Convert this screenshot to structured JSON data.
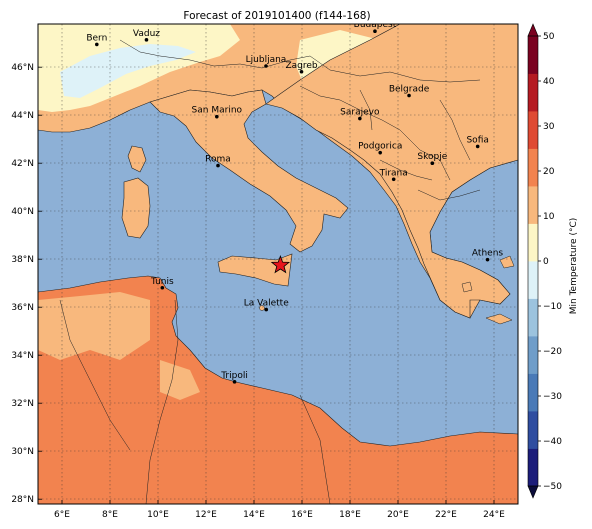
{
  "title": "Forecast of 2019101400 (f144-168)",
  "colorbar": {
    "label": "Min Temperature (°C)",
    "ticks": [
      "−50",
      "−40",
      "−30",
      "−20",
      "−10",
      "0",
      "10",
      "20",
      "30",
      "40",
      "50"
    ],
    "colors": [
      "#1c1d7a",
      "#2f4da0",
      "#4a7ab7",
      "#6f9dc9",
      "#9cc3de",
      "#def2f8",
      "#fdf6c6",
      "#f8b87d",
      "#f2834f",
      "#df4a33",
      "#b51b22",
      "#7a0220"
    ]
  },
  "map": {
    "region": "Central Mediterranean",
    "lon_range": [
      5,
      25
    ],
    "lat_range": [
      27.8,
      47.8
    ],
    "lon_ticks": [
      "6°E",
      "8°E",
      "10°E",
      "12°E",
      "14°E",
      "16°E",
      "18°E",
      "20°E",
      "22°E",
      "24°E"
    ],
    "lat_ticks": [
      "46°N",
      "44°N",
      "42°N",
      "40°N",
      "38°N",
      "36°N",
      "34°N",
      "32°N",
      "30°N",
      "28°N"
    ],
    "colors": {
      "sea": "#8db0d6",
      "land_warm": "#f8b87d",
      "land_hot": "#f2834f",
      "land_mild": "#fdf6c6",
      "alps_cold": "#def2f8"
    },
    "cities": [
      {
        "name": "Bern",
        "lon": 7.45,
        "lat": 46.95
      },
      {
        "name": "Vaduz",
        "lon": 9.52,
        "lat": 47.14
      },
      {
        "name": "Budapest",
        "lon": 19.04,
        "lat": 47.5
      },
      {
        "name": "Ljubljana",
        "lon": 14.5,
        "lat": 46.05
      },
      {
        "name": "Zagreb",
        "lon": 15.98,
        "lat": 45.81
      },
      {
        "name": "Belgrade",
        "lon": 20.46,
        "lat": 44.82
      },
      {
        "name": "San Marino",
        "lon": 12.45,
        "lat": 43.94
      },
      {
        "name": "Sarajevo",
        "lon": 18.41,
        "lat": 43.86
      },
      {
        "name": "Sofia",
        "lon": 23.32,
        "lat": 42.7
      },
      {
        "name": "Podgorica",
        "lon": 19.26,
        "lat": 42.44
      },
      {
        "name": "Skopje",
        "lon": 21.43,
        "lat": 42.0
      },
      {
        "name": "Roma",
        "lon": 12.5,
        "lat": 41.9
      },
      {
        "name": "Tirana",
        "lon": 19.82,
        "lat": 41.33
      },
      {
        "name": "Athens",
        "lon": 23.73,
        "lat": 37.98
      },
      {
        "name": "Tunis",
        "lon": 10.18,
        "lat": 36.81
      },
      {
        "name": "La Valette",
        "lon": 14.51,
        "lat": 35.9
      },
      {
        "name": "Tripoli",
        "lon": 13.19,
        "lat": 32.89
      }
    ],
    "marker": {
      "symbol": "star",
      "lon": 15.1,
      "lat": 37.75,
      "color": "#e8141c"
    }
  }
}
